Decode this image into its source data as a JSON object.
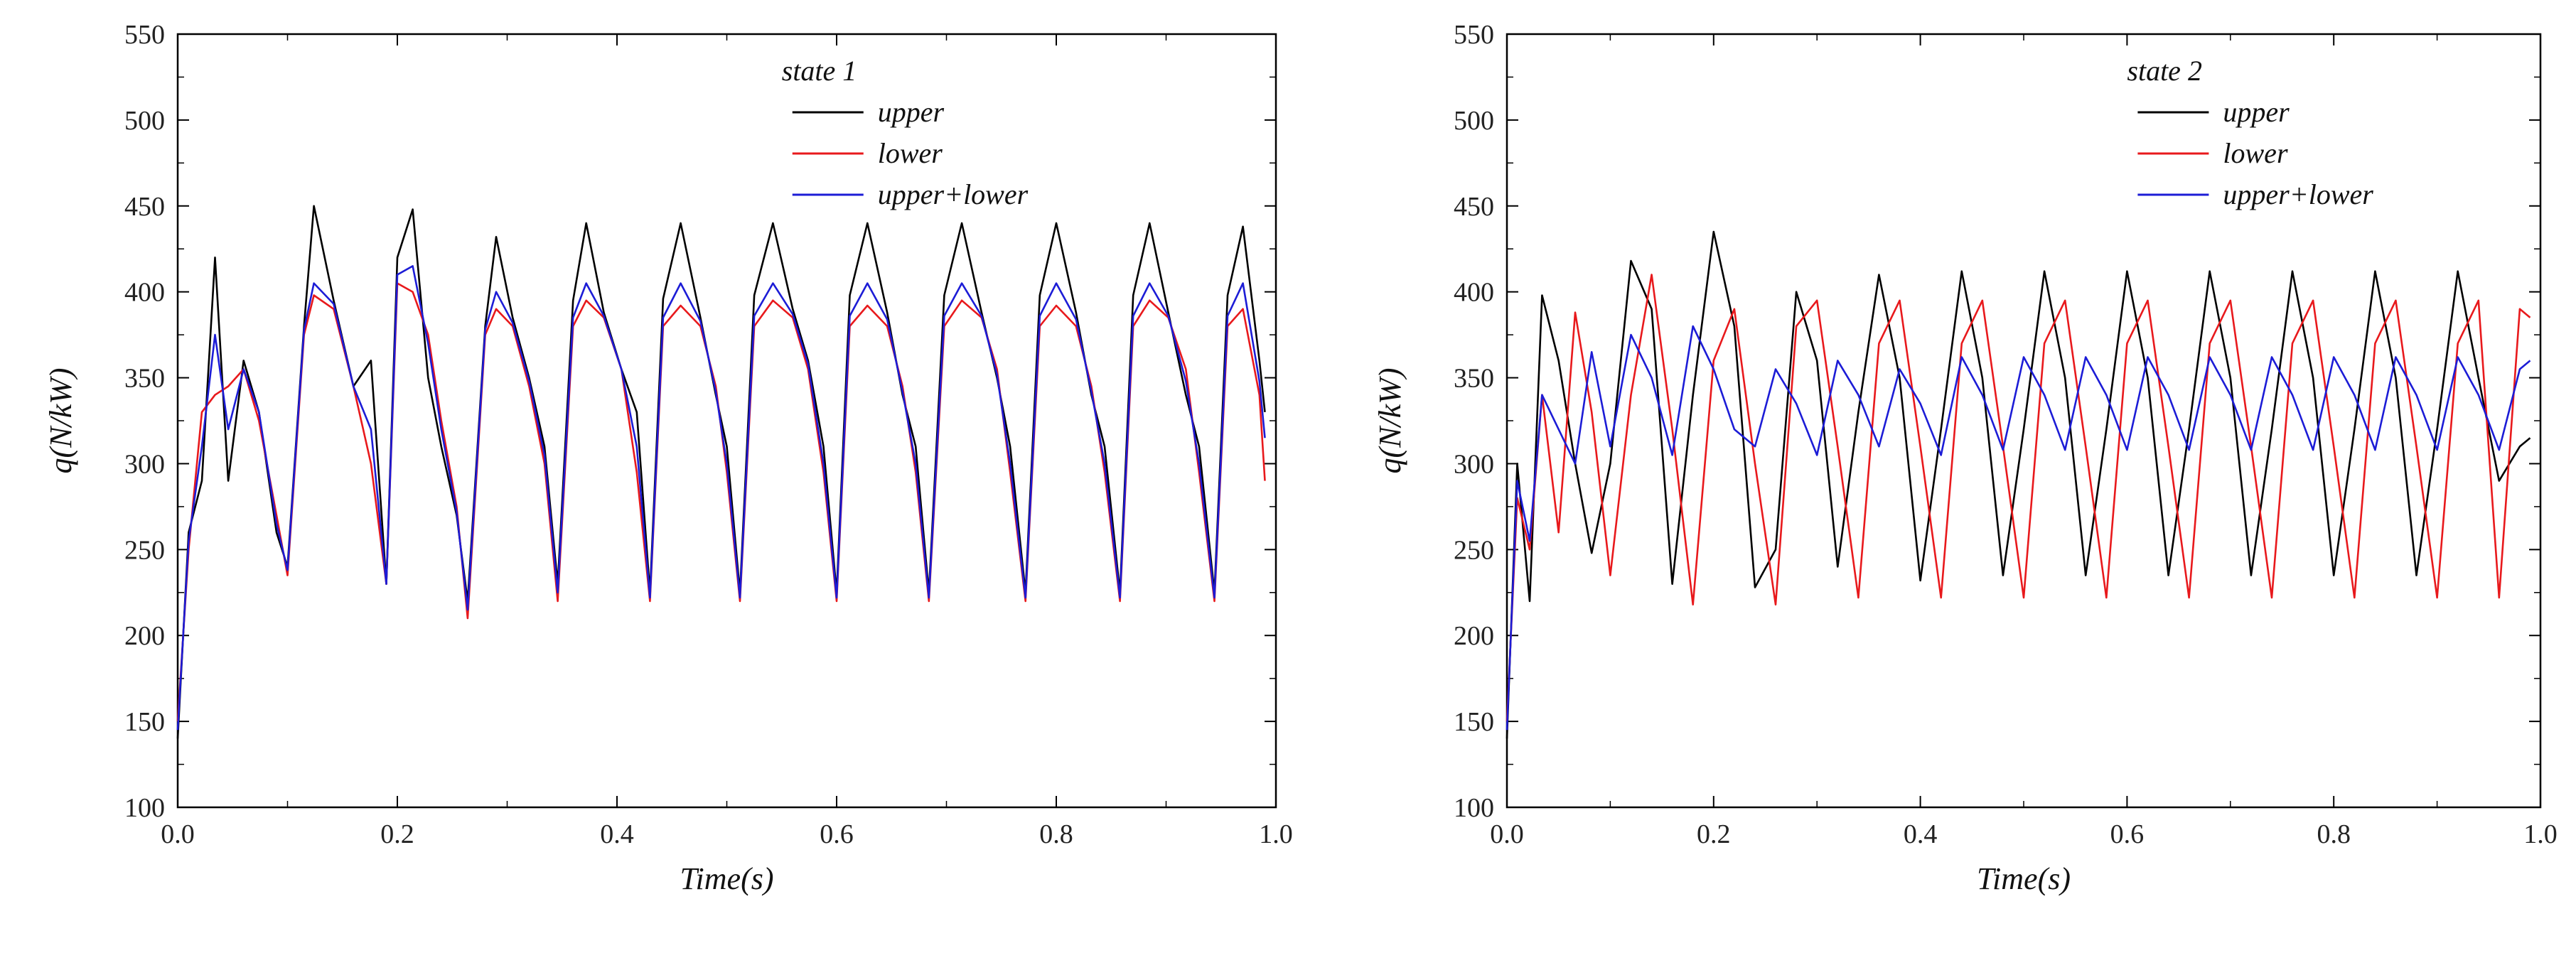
{
  "chart_data": [
    {
      "type": "line",
      "title": "state 1",
      "xlabel": "Time(s)",
      "ylabel": "q(N/kW)",
      "xlim": [
        0.0,
        1.0
      ],
      "ylim": [
        100,
        550
      ],
      "xticks": [
        "0.0",
        "0.2",
        "0.4",
        "0.6",
        "0.8",
        "1.0"
      ],
      "yticks": [
        "100",
        "150",
        "200",
        "250",
        "300",
        "350",
        "400",
        "450",
        "500",
        "550"
      ],
      "legend_position": "top-right",
      "series": [
        {
          "name": "upper",
          "color": "#000000",
          "x": [
            0.0,
            0.01,
            0.022,
            0.034,
            0.046,
            0.06,
            0.074,
            0.09,
            0.1,
            0.115,
            0.124,
            0.142,
            0.16,
            0.176,
            0.19,
            0.2,
            0.214,
            0.228,
            0.24,
            0.254,
            0.264,
            0.28,
            0.29,
            0.305,
            0.32,
            0.334,
            0.346,
            0.36,
            0.372,
            0.388,
            0.404,
            0.418,
            0.43,
            0.442,
            0.458,
            0.476,
            0.49,
            0.5,
            0.512,
            0.525,
            0.542,
            0.56,
            0.574,
            0.588,
            0.6,
            0.612,
            0.628,
            0.646,
            0.66,
            0.672,
            0.684,
            0.698,
            0.714,
            0.732,
            0.746,
            0.758,
            0.772,
            0.785,
            0.8,
            0.818,
            0.832,
            0.844,
            0.858,
            0.87,
            0.885,
            0.902,
            0.918,
            0.93,
            0.944,
            0.956,
            0.97,
            0.985,
            0.99
          ],
          "values": [
            140,
            260,
            290,
            420,
            290,
            360,
            330,
            260,
            240,
            380,
            450,
            395,
            345,
            360,
            230,
            420,
            448,
            350,
            310,
            270,
            220,
            380,
            432,
            385,
            350,
            310,
            230,
            395,
            440,
            388,
            355,
            330,
            225,
            396,
            440,
            385,
            340,
            310,
            225,
            398,
            440,
            390,
            360,
            310,
            225,
            398,
            440,
            388,
            340,
            310,
            225,
            398,
            440,
            388,
            350,
            310,
            225,
            398,
            440,
            388,
            340,
            310,
            225,
            398,
            440,
            388,
            340,
            310,
            225,
            398,
            438,
            360,
            330
          ]
        },
        {
          "name": "lower",
          "color": "#e8191c",
          "x": [
            0.0,
            0.01,
            0.022,
            0.034,
            0.046,
            0.06,
            0.074,
            0.09,
            0.1,
            0.115,
            0.124,
            0.142,
            0.16,
            0.176,
            0.19,
            0.2,
            0.214,
            0.228,
            0.24,
            0.254,
            0.264,
            0.28,
            0.29,
            0.305,
            0.32,
            0.334,
            0.346,
            0.36,
            0.372,
            0.388,
            0.404,
            0.418,
            0.43,
            0.442,
            0.458,
            0.476,
            0.49,
            0.5,
            0.512,
            0.525,
            0.542,
            0.56,
            0.574,
            0.588,
            0.6,
            0.612,
            0.628,
            0.646,
            0.66,
            0.672,
            0.684,
            0.698,
            0.714,
            0.732,
            0.746,
            0.758,
            0.772,
            0.785,
            0.8,
            0.818,
            0.832,
            0.844,
            0.858,
            0.87,
            0.885,
            0.902,
            0.918,
            0.93,
            0.944,
            0.956,
            0.97,
            0.985,
            0.99
          ],
          "values": [
            150,
            250,
            330,
            340,
            345,
            355,
            325,
            270,
            235,
            375,
            398,
            390,
            345,
            300,
            230,
            405,
            400,
            375,
            325,
            275,
            210,
            375,
            390,
            380,
            345,
            300,
            220,
            380,
            395,
            385,
            355,
            295,
            220,
            380,
            392,
            380,
            345,
            295,
            220,
            380,
            395,
            385,
            355,
            295,
            220,
            380,
            392,
            380,
            345,
            295,
            220,
            380,
            395,
            385,
            355,
            295,
            220,
            380,
            392,
            380,
            345,
            295,
            220,
            380,
            395,
            385,
            355,
            295,
            220,
            380,
            390,
            340,
            290
          ]
        },
        {
          "name": "upper+lower",
          "color": "#1c1cd6",
          "x": [
            0.0,
            0.01,
            0.022,
            0.034,
            0.046,
            0.06,
            0.074,
            0.09,
            0.1,
            0.115,
            0.124,
            0.142,
            0.16,
            0.176,
            0.19,
            0.2,
            0.214,
            0.228,
            0.24,
            0.254,
            0.264,
            0.28,
            0.29,
            0.305,
            0.32,
            0.334,
            0.346,
            0.36,
            0.372,
            0.388,
            0.404,
            0.418,
            0.43,
            0.442,
            0.458,
            0.476,
            0.49,
            0.5,
            0.512,
            0.525,
            0.542,
            0.56,
            0.574,
            0.588,
            0.6,
            0.612,
            0.628,
            0.646,
            0.66,
            0.672,
            0.684,
            0.698,
            0.714,
            0.732,
            0.746,
            0.758,
            0.772,
            0.785,
            0.8,
            0.818,
            0.832,
            0.844,
            0.858,
            0.87,
            0.885,
            0.902,
            0.918,
            0.93,
            0.944,
            0.956,
            0.97,
            0.985,
            0.99
          ],
          "values": [
            145,
            255,
            310,
            375,
            320,
            355,
            330,
            265,
            238,
            378,
            405,
            393,
            345,
            320,
            230,
            410,
            415,
            370,
            320,
            272,
            215,
            378,
            400,
            382,
            348,
            305,
            225,
            385,
            405,
            386,
            355,
            310,
            222,
            385,
            405,
            383,
            342,
            300,
            222,
            386,
            405,
            387,
            358,
            300,
            222,
            386,
            405,
            384,
            342,
            300,
            222,
            386,
            405,
            386,
            352,
            300,
            222,
            386,
            405,
            384,
            342,
            300,
            222,
            386,
            405,
            386,
            348,
            300,
            222,
            386,
            405,
            348,
            315
          ]
        }
      ]
    },
    {
      "type": "line",
      "title": "state 2",
      "xlabel": "Time(s)",
      "ylabel": "q(N/kW)",
      "xlim": [
        0.0,
        1.0
      ],
      "ylim": [
        100,
        550
      ],
      "xticks": [
        "0.0",
        "0.2",
        "0.4",
        "0.6",
        "0.8",
        "1.0"
      ],
      "yticks": [
        "100",
        "150",
        "200",
        "250",
        "300",
        "350",
        "400",
        "450",
        "500",
        "550"
      ],
      "legend_position": "top-right",
      "series": [
        {
          "name": "upper",
          "color": "#000000",
          "x": [
            0.0,
            0.01,
            0.022,
            0.034,
            0.05,
            0.066,
            0.082,
            0.1,
            0.12,
            0.14,
            0.16,
            0.18,
            0.2,
            0.22,
            0.24,
            0.26,
            0.28,
            0.3,
            0.32,
            0.34,
            0.36,
            0.38,
            0.4,
            0.42,
            0.44,
            0.46,
            0.48,
            0.5,
            0.52,
            0.54,
            0.56,
            0.58,
            0.6,
            0.62,
            0.64,
            0.66,
            0.68,
            0.7,
            0.72,
            0.74,
            0.76,
            0.78,
            0.8,
            0.82,
            0.84,
            0.86,
            0.88,
            0.9,
            0.92,
            0.94,
            0.96,
            0.98,
            0.99
          ],
          "values": [
            140,
            300,
            220,
            398,
            360,
            300,
            248,
            300,
            418,
            390,
            230,
            340,
            435,
            380,
            228,
            250,
            400,
            360,
            240,
            330,
            410,
            350,
            232,
            320,
            412,
            350,
            235,
            320,
            412,
            350,
            235,
            320,
            412,
            350,
            235,
            320,
            412,
            350,
            235,
            320,
            412,
            350,
            235,
            320,
            412,
            350,
            235,
            320,
            412,
            350,
            290,
            310,
            315
          ]
        },
        {
          "name": "lower",
          "color": "#e8191c",
          "x": [
            0.0,
            0.01,
            0.022,
            0.034,
            0.05,
            0.066,
            0.082,
            0.1,
            0.12,
            0.14,
            0.16,
            0.18,
            0.2,
            0.22,
            0.24,
            0.26,
            0.28,
            0.3,
            0.32,
            0.34,
            0.36,
            0.38,
            0.4,
            0.42,
            0.44,
            0.46,
            0.48,
            0.5,
            0.52,
            0.54,
            0.56,
            0.58,
            0.6,
            0.62,
            0.64,
            0.66,
            0.68,
            0.7,
            0.72,
            0.74,
            0.76,
            0.78,
            0.8,
            0.82,
            0.84,
            0.86,
            0.88,
            0.9,
            0.92,
            0.94,
            0.96,
            0.98,
            0.99
          ],
          "values": [
            150,
            280,
            250,
            340,
            260,
            388,
            330,
            235,
            340,
            410,
            320,
            218,
            360,
            390,
            300,
            218,
            380,
            395,
            310,
            222,
            370,
            395,
            310,
            222,
            370,
            395,
            310,
            222,
            370,
            395,
            310,
            222,
            370,
            395,
            310,
            222,
            370,
            395,
            310,
            222,
            370,
            395,
            310,
            222,
            370,
            395,
            310,
            222,
            370,
            395,
            222,
            390,
            385
          ]
        },
        {
          "name": "upper+lower",
          "color": "#1c1cd6",
          "x": [
            0.0,
            0.01,
            0.022,
            0.034,
            0.05,
            0.066,
            0.082,
            0.1,
            0.12,
            0.14,
            0.16,
            0.18,
            0.2,
            0.22,
            0.24,
            0.26,
            0.28,
            0.3,
            0.32,
            0.34,
            0.36,
            0.38,
            0.4,
            0.42,
            0.44,
            0.46,
            0.48,
            0.5,
            0.52,
            0.54,
            0.56,
            0.58,
            0.6,
            0.62,
            0.64,
            0.66,
            0.68,
            0.7,
            0.72,
            0.74,
            0.76,
            0.78,
            0.8,
            0.82,
            0.84,
            0.86,
            0.88,
            0.9,
            0.92,
            0.94,
            0.96,
            0.98,
            0.99
          ],
          "values": [
            145,
            290,
            255,
            340,
            320,
            300,
            365,
            310,
            375,
            350,
            305,
            380,
            355,
            320,
            310,
            355,
            335,
            305,
            360,
            340,
            310,
            355,
            335,
            305,
            362,
            340,
            308,
            362,
            340,
            308,
            362,
            340,
            308,
            362,
            340,
            308,
            362,
            340,
            308,
            362,
            340,
            308,
            362,
            340,
            308,
            362,
            340,
            308,
            362,
            340,
            308,
            355,
            360
          ]
        }
      ]
    }
  ]
}
